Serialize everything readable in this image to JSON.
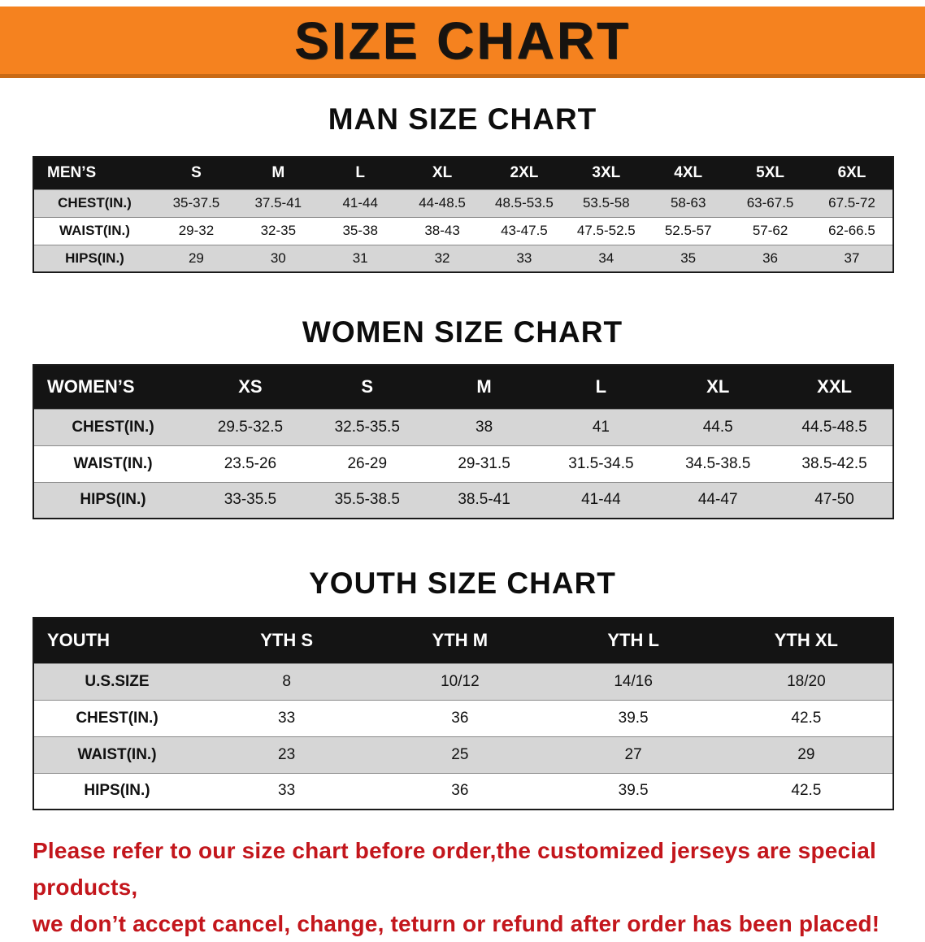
{
  "banner": {
    "title": "SIZE CHART"
  },
  "colors": {
    "banner_bg": "#f5821f",
    "banner_bottom_edge": "#c96a15",
    "table_header_bg": "#141414",
    "row_shade": "#d6d6d6",
    "note_red": "#c3161c"
  },
  "sections": [
    {
      "title": "MAN SIZE CHART",
      "header": [
        "MEN’S",
        "S",
        "M",
        "L",
        "XL",
        "2XL",
        "3XL",
        "4XL",
        "5XL",
        "6XL"
      ],
      "rows": [
        [
          "CHEST(IN.)",
          "35-37.5",
          "37.5-41",
          "41-44",
          "44-48.5",
          "48.5-53.5",
          "53.5-58",
          "58-63",
          "63-67.5",
          "67.5-72"
        ],
        [
          "WAIST(IN.)",
          "29-32",
          "32-35",
          "35-38",
          "38-43",
          "43-47.5",
          "47.5-52.5",
          "52.5-57",
          "57-62",
          "62-66.5"
        ],
        [
          "HIPS(IN.)",
          "29",
          "30",
          "31",
          "32",
          "33",
          "34",
          "35",
          "36",
          "37"
        ]
      ]
    },
    {
      "title": "WOMEN SIZE CHART",
      "header": [
        "WOMEN’S",
        "XS",
        "S",
        "M",
        "L",
        "XL",
        "XXL"
      ],
      "rows": [
        [
          "CHEST(IN.)",
          "29.5-32.5",
          "32.5-35.5",
          "38",
          "41",
          "44.5",
          "44.5-48.5"
        ],
        [
          "WAIST(IN.)",
          "23.5-26",
          "26-29",
          "29-31.5",
          "31.5-34.5",
          "34.5-38.5",
          "38.5-42.5"
        ],
        [
          "HIPS(IN.)",
          "33-35.5",
          "35.5-38.5",
          "38.5-41",
          "41-44",
          "44-47",
          "47-50"
        ]
      ]
    },
    {
      "title": "YOUTH SIZE CHART",
      "header": [
        "YOUTH",
        "YTH S",
        "YTH M",
        "YTH L",
        "YTH XL"
      ],
      "rows": [
        [
          "U.S.SIZE",
          "8",
          "10/12",
          "14/16",
          "18/20"
        ],
        [
          "CHEST(IN.)",
          "33",
          "36",
          "39.5",
          "42.5"
        ],
        [
          "WAIST(IN.)",
          "23",
          "25",
          "27",
          "29"
        ],
        [
          "HIPS(IN.)",
          "33",
          "36",
          "39.5",
          "42.5"
        ]
      ]
    }
  ],
  "footer": {
    "line1": "Please refer to our size chart before order,the customized jerseys are special products,",
    "line2": "we don’t accept cancel, change, teturn or refund after order has been placed!"
  }
}
